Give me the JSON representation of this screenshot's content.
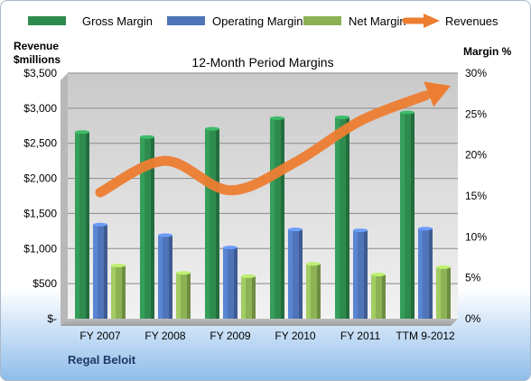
{
  "chart_data": {
    "type": "bar",
    "title": "12-Month Period Margins",
    "company": "Regal Beloit",
    "left_axis_title": [
      "Revenue",
      "$millions"
    ],
    "right_axis_title": "Margin %",
    "categories": [
      "FY 2007",
      "FY 2008",
      "FY 2009",
      "FY 2010",
      "FY 2011",
      "TTM 9-2012"
    ],
    "y_left_ticks": [
      "$-",
      "$500",
      "$1,000",
      "$1,500",
      "$2,000",
      "$2,500",
      "$3,000",
      "$3,500"
    ],
    "y_right_ticks": [
      "0%",
      "5%",
      "10%",
      "15%",
      "20%",
      "25%",
      "30%"
    ],
    "ylim_left": [
      0,
      3500
    ],
    "ylim_right": [
      0,
      30
    ],
    "grid": true,
    "legend_position": "top",
    "series": [
      {
        "name": "Gross Margin",
        "type": "bar",
        "axis": "right",
        "color": "#2e8b4e",
        "values": [
          22.8,
          22.2,
          23.2,
          24.5,
          24.6,
          25.2
        ]
      },
      {
        "name": "Operating Margin",
        "type": "bar",
        "axis": "right",
        "color": "#4f74b8",
        "values": [
          11.5,
          10.2,
          8.7,
          10.9,
          10.8,
          11.0
        ]
      },
      {
        "name": "Net Margin",
        "type": "bar",
        "axis": "right",
        "color": "#8db255",
        "values": [
          6.5,
          5.6,
          5.2,
          6.7,
          5.4,
          6.3
        ]
      },
      {
        "name": "Revenues",
        "type": "line",
        "axis": "left",
        "color": "#ed7d31",
        "values": [
          1800,
          2250,
          1830,
          2230,
          2820,
          3180
        ]
      }
    ]
  }
}
